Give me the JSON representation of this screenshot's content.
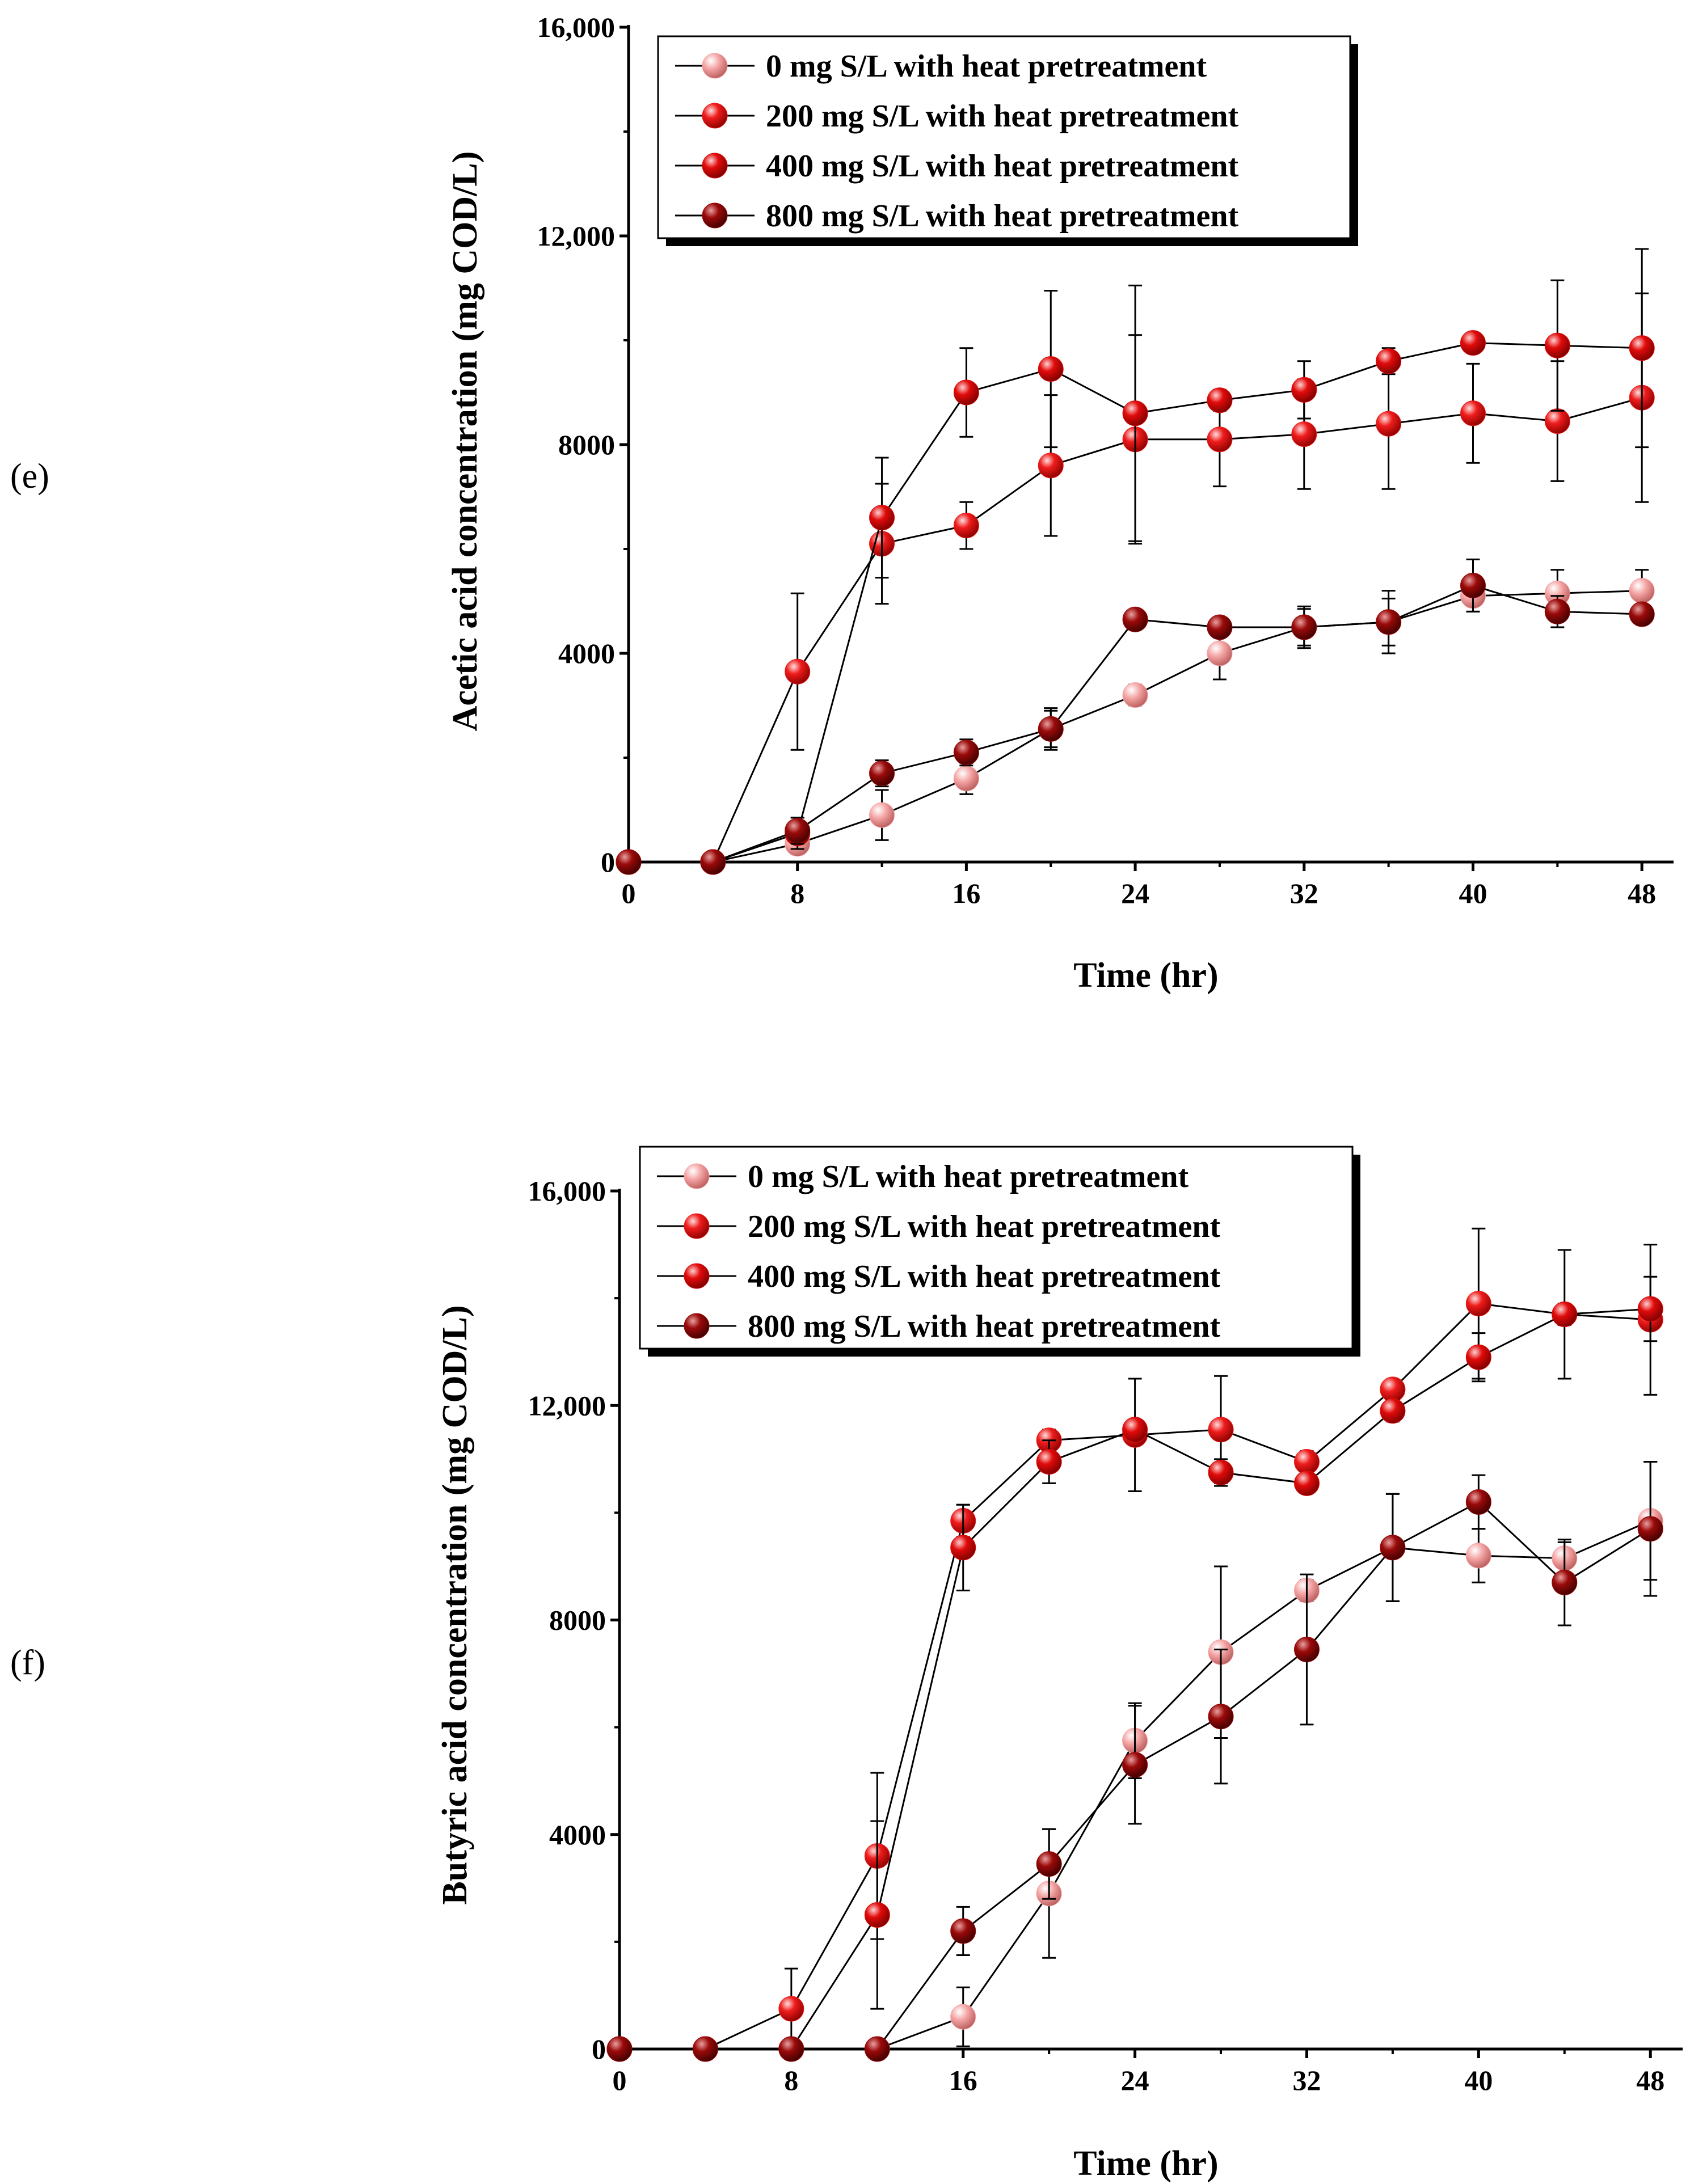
{
  "chart_data": [
    {
      "type": "line",
      "panel_label": "(e)",
      "xlabel": "Time (hr)",
      "ylabel": "Acetic acid concentration (mg COD/L)",
      "xlim": [
        0,
        49.5
      ],
      "ylim": [
        0,
        16000
      ],
      "xticks": [
        0,
        8,
        16,
        24,
        32,
        40,
        48
      ],
      "xtick_labels": [
        "0",
        "8",
        "16",
        "24",
        "32",
        "40",
        "48"
      ],
      "yticks": [
        0,
        4000,
        8000,
        12000,
        16000
      ],
      "ytick_labels": [
        "0",
        "4000",
        "8000",
        "12,000",
        "16,000"
      ],
      "legend_position": "top-right",
      "x": [
        0,
        4,
        8,
        12,
        16,
        20,
        24,
        28,
        32,
        36,
        40,
        44,
        48
      ],
      "series": [
        {
          "name": "0 mg S/L with heat pretreatment",
          "color": "#f4a3a3",
          "values": [
            0,
            0,
            350,
            900,
            1600,
            2550,
            3200,
            4000,
            4500,
            4600,
            5100,
            5150,
            5200
          ],
          "errors": [
            0,
            0,
            150,
            480,
            300,
            350,
            200,
            500,
            350,
            450,
            300,
            450,
            400
          ]
        },
        {
          "name": "200 mg S/L with heat pretreatment",
          "color": "#ef1c1c",
          "values": [
            0,
            0,
            3650,
            6100,
            6450,
            7600,
            8100,
            8100,
            8200,
            8400,
            8600,
            8450,
            8900
          ],
          "errors": [
            0,
            0,
            1500,
            1150,
            450,
            1350,
            2000,
            900,
            1050,
            1250,
            950,
            1150,
            2000
          ]
        },
        {
          "name": "400 mg S/L with heat pretreatment",
          "color": "#e10b0b",
          "values": [
            0,
            0,
            550,
            6600,
            9000,
            9450,
            8600,
            8850,
            9050,
            9600,
            9950,
            9900,
            9850
          ],
          "errors": [
            0,
            0,
            300,
            1150,
            850,
            1500,
            2450,
            200,
            550,
            250,
            150,
            1250,
            1900
          ]
        },
        {
          "name": "800 mg S/L with heat pretreatment",
          "color": "#9b0a0a",
          "values": [
            0,
            0,
            600,
            1700,
            2100,
            2550,
            4650,
            4500,
            4500,
            4600,
            5300,
            4800,
            4750
          ],
          "errors": [
            0,
            0,
            250,
            250,
            250,
            400,
            100,
            150,
            400,
            600,
            500,
            300,
            150
          ]
        }
      ]
    },
    {
      "type": "line",
      "panel_label": "(f)",
      "xlabel": "Time (hr)",
      "ylabel": "Butyric acid concentration (mg COD/L)",
      "xlim": [
        0,
        49.5
      ],
      "ylim": [
        0,
        16000
      ],
      "xticks": [
        0,
        8,
        16,
        24,
        32,
        40,
        48
      ],
      "xtick_labels": [
        "0",
        "8",
        "16",
        "24",
        "32",
        "40",
        "48"
      ],
      "yticks": [
        0,
        4000,
        8000,
        12000,
        16000
      ],
      "ytick_labels": [
        "0",
        "4000",
        "8000",
        "12,000",
        "16,000"
      ],
      "legend_position": "top-right",
      "x": [
        0,
        4,
        8,
        12,
        16,
        20,
        24,
        28,
        32,
        36,
        40,
        44,
        48
      ],
      "series": [
        {
          "name": "0 mg S/L with heat pretreatment",
          "color": "#f4a3a3",
          "values": [
            0,
            0,
            0,
            0,
            600,
            2900,
            5750,
            7400,
            8550,
            9350,
            9200,
            9150,
            9850
          ],
          "errors": [
            0,
            0,
            0,
            0,
            550,
            1200,
            700,
            1600,
            200,
            1000,
            500,
            300,
            1100
          ]
        },
        {
          "name": "200 mg S/L with heat pretreatment",
          "color": "#ef1c1c",
          "values": [
            0,
            0,
            750,
            3600,
            9850,
            11350,
            11450,
            11550,
            10950,
            12300,
            13900,
            13700,
            13600
          ],
          "errors": [
            0,
            0,
            750,
            1550,
            300,
            200,
            1050,
            1000,
            200,
            150,
            1400,
            1200,
            1400
          ]
        },
        {
          "name": "400 mg S/L with heat pretreatment",
          "color": "#e10b0b",
          "values": [
            0,
            0,
            0,
            2500,
            9350,
            10950,
            11550,
            10750,
            10550,
            11900,
            12900,
            13700,
            13800
          ],
          "errors": [
            0,
            0,
            0,
            1750,
            800,
            400,
            150,
            250,
            100,
            200,
            450,
            200,
            600
          ]
        },
        {
          "name": "800 mg S/L with heat pretreatment",
          "color": "#9b0a0a",
          "values": [
            0,
            0,
            0,
            0,
            2200,
            3450,
            5300,
            6200,
            7450,
            9350,
            10200,
            8700,
            9700
          ],
          "errors": [
            0,
            0,
            0,
            0,
            450,
            650,
            1100,
            1250,
            1400,
            1000,
            500,
            800,
            1250
          ]
        }
      ]
    }
  ]
}
